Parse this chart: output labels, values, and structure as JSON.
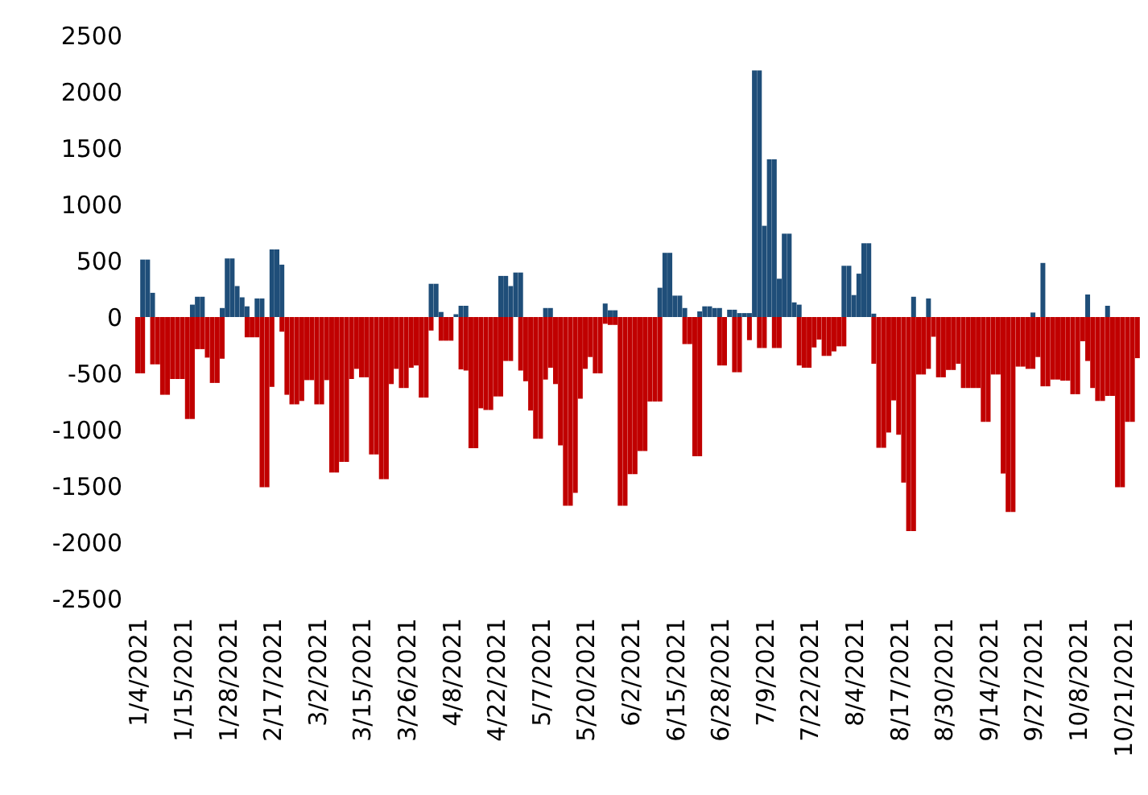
{
  "chart_data": {
    "type": "bar",
    "stacked": true,
    "categories": [
      "1/4/2021",
      null,
      null,
      null,
      null,
      null,
      null,
      null,
      null,
      "1/15/2021",
      null,
      null,
      null,
      null,
      null,
      null,
      null,
      null,
      "1/28/2021",
      null,
      null,
      null,
      null,
      null,
      null,
      null,
      null,
      "2/17/2021",
      null,
      null,
      null,
      null,
      null,
      null,
      null,
      null,
      "3/2/2021",
      null,
      null,
      null,
      null,
      null,
      null,
      null,
      null,
      "3/15/2021",
      null,
      null,
      null,
      null,
      null,
      null,
      null,
      null,
      "3/26/2021",
      null,
      null,
      null,
      null,
      null,
      null,
      null,
      null,
      "4/8/2021",
      null,
      null,
      null,
      null,
      null,
      null,
      null,
      null,
      "4/22/2021",
      null,
      null,
      null,
      null,
      null,
      null,
      null,
      null,
      "5/7/2021",
      null,
      null,
      null,
      null,
      null,
      null,
      null,
      null,
      "5/20/2021",
      null,
      null,
      null,
      null,
      null,
      null,
      null,
      null,
      "6/2/2021",
      null,
      null,
      null,
      null,
      null,
      null,
      null,
      null,
      "6/15/2021",
      null,
      null,
      null,
      null,
      null,
      null,
      null,
      null,
      "6/28/2021",
      null,
      null,
      null,
      null,
      null,
      null,
      null,
      null,
      "7/9/2021",
      null,
      null,
      null,
      null,
      null,
      null,
      null,
      null,
      "7/22/2021",
      null,
      null,
      null,
      null,
      null,
      null,
      null,
      null,
      "8/4/2021",
      null,
      null,
      null,
      null,
      null,
      null,
      null,
      null,
      "8/17/2021",
      null,
      null,
      null,
      null,
      null,
      null,
      null,
      null,
      "8/30/2021",
      null,
      null,
      null,
      null,
      null,
      null,
      null,
      null,
      "9/14/2021",
      null,
      null,
      null,
      null,
      null,
      null,
      null,
      null,
      "9/27/2021",
      null,
      null,
      null,
      null,
      null,
      null,
      null,
      null,
      "10/8/2021",
      null,
      null,
      null,
      null,
      null,
      null,
      null,
      null,
      "10/21/2021",
      null,
      null,
      null
    ],
    "series": [
      {
        "color": "#1f4e79",
        "values": [
          null,
          510,
          510,
          215,
          null,
          null,
          null,
          null,
          null,
          null,
          null,
          110,
          180,
          180,
          null,
          null,
          null,
          80,
          520,
          520,
          275,
          175,
          95,
          null,
          165,
          165,
          null,
          600,
          600,
          465,
          null,
          null,
          null,
          null,
          null,
          null,
          null,
          null,
          null,
          null,
          null,
          null,
          null,
          null,
          null,
          null,
          null,
          null,
          null,
          null,
          null,
          null,
          null,
          null,
          null,
          null,
          null,
          null,
          null,
          295,
          295,
          45,
          null,
          null,
          25,
          100,
          100,
          null,
          null,
          null,
          null,
          null,
          null,
          365,
          365,
          275,
          395,
          395,
          null,
          null,
          null,
          null,
          80,
          80,
          null,
          null,
          null,
          null,
          null,
          null,
          null,
          null,
          null,
          null,
          120,
          60,
          60,
          null,
          null,
          null,
          null,
          null,
          null,
          null,
          null,
          260,
          570,
          570,
          190,
          190,
          80,
          null,
          null,
          50,
          95,
          95,
          80,
          80,
          null,
          65,
          65,
          35,
          35,
          35,
          2190,
          2190,
          810,
          1400,
          1400,
          340,
          740,
          740,
          130,
          110,
          null,
          null,
          null,
          null,
          null,
          null,
          null,
          null,
          455,
          455,
          195,
          385,
          655,
          655,
          30,
          null,
          null,
          null,
          null,
          null,
          null,
          null,
          180,
          null,
          null,
          165,
          null,
          null,
          null,
          null,
          null,
          null,
          null,
          null,
          null,
          null,
          null,
          null,
          null,
          null,
          null,
          null,
          null,
          null,
          null,
          null,
          40,
          null,
          480,
          null,
          null,
          null,
          null,
          null,
          null,
          null,
          null,
          200,
          null,
          null,
          null,
          100,
          null,
          null,
          null,
          null,
          null,
          null
        ]
      },
      {
        "color": "#c00000",
        "values": [
          -500,
          -500,
          null,
          -420,
          -420,
          -690,
          -690,
          -550,
          -550,
          -550,
          -905,
          -905,
          -285,
          -285,
          -360,
          -585,
          -585,
          -370,
          null,
          null,
          null,
          null,
          -180,
          -180,
          -180,
          -1510,
          -1510,
          -620,
          null,
          -130,
          -690,
          -775,
          -775,
          -745,
          -560,
          -560,
          -775,
          -775,
          -560,
          -1380,
          -1380,
          -1285,
          -1285,
          -550,
          -460,
          -535,
          -535,
          -1220,
          -1220,
          -1440,
          -1440,
          -595,
          -460,
          -630,
          -630,
          -450,
          -430,
          -715,
          -715,
          -120,
          null,
          -210,
          -210,
          -210,
          null,
          -465,
          -475,
          -1165,
          -1165,
          -810,
          -825,
          -825,
          -705,
          -705,
          -390,
          -390,
          null,
          -475,
          -570,
          -830,
          -1080,
          -1080,
          -555,
          -450,
          -595,
          -1140,
          -1675,
          -1675,
          -1560,
          -725,
          -460,
          -355,
          -500,
          -500,
          -60,
          -70,
          -70,
          -1675,
          -1675,
          -1395,
          -1395,
          -1190,
          -1190,
          -750,
          -750,
          -750,
          null,
          null,
          null,
          null,
          -240,
          -240,
          -1235,
          -1235,
          null,
          null,
          null,
          -430,
          -430,
          null,
          -490,
          -490,
          null,
          -205,
          null,
          -275,
          -275,
          null,
          -275,
          -275,
          null,
          null,
          null,
          -430,
          -450,
          -450,
          -270,
          -200,
          -345,
          -345,
          -305,
          -260,
          -260,
          null,
          null,
          null,
          null,
          null,
          -415,
          -1160,
          -1160,
          -1025,
          -740,
          -1045,
          -1470,
          -1900,
          -1900,
          -510,
          -510,
          -460,
          -175,
          -535,
          -535,
          -470,
          -470,
          -415,
          -630,
          -630,
          -630,
          -630,
          -930,
          -930,
          -510,
          -510,
          -1390,
          -1730,
          -1730,
          -440,
          -440,
          -460,
          -460,
          -355,
          -615,
          -615,
          -555,
          -555,
          -565,
          -565,
          -685,
          -685,
          -215,
          -390,
          -630,
          -745,
          -745,
          -700,
          -700,
          -1510,
          -1510,
          -930,
          -930,
          -365
        ]
      }
    ],
    "ylim": [
      -2500,
      2500
    ],
    "yticks": [
      -2500,
      -2000,
      -1500,
      -1000,
      -500,
      0,
      500,
      1000,
      1500,
      2000,
      2500
    ],
    "grid": false,
    "legend": false
  }
}
